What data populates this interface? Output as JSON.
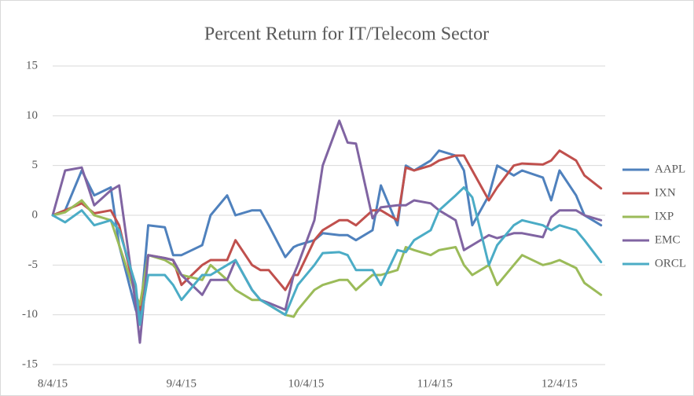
{
  "chart_data": {
    "type": "line",
    "title": "Percent Return for IT/Telecom Sector",
    "x": [
      "2015-08-04",
      "2015-08-07",
      "2015-08-11",
      "2015-08-14",
      "2015-08-18",
      "2015-08-20",
      "2015-08-24",
      "2015-08-25",
      "2015-08-27",
      "2015-08-31",
      "2015-09-02",
      "2015-09-04",
      "2015-09-09",
      "2015-09-11",
      "2015-09-15",
      "2015-09-17",
      "2015-09-21",
      "2015-09-23",
      "2015-09-25",
      "2015-09-29",
      "2015-10-01",
      "2015-10-02",
      "2015-10-06",
      "2015-10-08",
      "2015-10-12",
      "2015-10-14",
      "2015-10-16",
      "2015-10-20",
      "2015-10-22",
      "2015-10-26",
      "2015-10-28",
      "2015-10-30",
      "2015-11-03",
      "2015-11-05",
      "2015-11-09",
      "2015-11-11",
      "2015-11-13",
      "2015-11-17",
      "2015-11-19",
      "2015-11-23",
      "2015-11-25",
      "2015-11-30",
      "2015-12-02",
      "2015-12-04",
      "2015-12-08",
      "2015-12-10",
      "2015-12-14"
    ],
    "series": [
      {
        "name": "AAPL",
        "color": "#4f81bd",
        "values": [
          0,
          0.5,
          4.5,
          2,
          2.8,
          -3,
          -9.5,
          -10.5,
          -1,
          -1.2,
          -4,
          -4,
          -3,
          0,
          2,
          0,
          0.5,
          0.5,
          -1,
          -4.2,
          -3.2,
          -3,
          -2.5,
          -1.8,
          -2,
          -2,
          -2.5,
          -1.5,
          3,
          -1,
          5,
          4.5,
          5.5,
          6.5,
          6,
          4.5,
          -1,
          2,
          5,
          4,
          4.5,
          3.8,
          1.5,
          4.5,
          2,
          0,
          -1
        ]
      },
      {
        "name": "IXN",
        "color": "#c0504d",
        "values": [
          0,
          0.5,
          1.2,
          0.2,
          0.5,
          -1,
          -8,
          -9.5,
          -4,
          -4.3,
          -4.5,
          -7,
          -5,
          -4.5,
          -4.5,
          -2.5,
          -5,
          -5.5,
          -5.5,
          -7.5,
          -6,
          -6,
          -2.5,
          -1.5,
          -0.5,
          -0.5,
          -1,
          0.5,
          0.5,
          -0.5,
          4.8,
          4.5,
          5,
          5.5,
          6,
          6,
          4.5,
          1.5,
          2.8,
          5,
          5.2,
          5.1,
          5.5,
          6.5,
          5.5,
          4,
          2.7
        ]
      },
      {
        "name": "IXP",
        "color": "#9bbb59",
        "values": [
          0,
          0.3,
          1.5,
          0,
          -0.5,
          -3,
          -8,
          -9,
          -4,
          -4.5,
          -5,
          -6,
          -6.5,
          -5,
          -6.5,
          -7.5,
          -8.5,
          -8.5,
          -9,
          -10,
          -10.2,
          -9.5,
          -7.5,
          -7,
          -6.5,
          -6.5,
          -7.5,
          -6,
          -6,
          -5.5,
          -3.2,
          -3.5,
          -4,
          -3.5,
          -3.2,
          -5,
          -6,
          -5,
          -7,
          -5,
          -4,
          -5,
          -4.8,
          -4.5,
          -5.3,
          -6.8,
          -8
        ]
      },
      {
        "name": "EMC",
        "color": "#8064a2",
        "values": [
          0,
          4.5,
          4.8,
          1,
          2.5,
          3,
          -9,
          -12.8,
          -4,
          -4.3,
          -4.5,
          -6,
          -8,
          -6.5,
          -6.5,
          -4.5,
          -7.5,
          -8.5,
          -8.8,
          -9.5,
          -6,
          -5,
          -0.5,
          5,
          9.5,
          7.3,
          7.2,
          -0.3,
          0.8,
          1,
          1,
          1.5,
          1.2,
          0.5,
          -0.5,
          -3.5,
          -3,
          -2,
          -2.3,
          -1.8,
          -1.8,
          -2.2,
          -0.2,
          0.5,
          0.5,
          0,
          -0.5
        ]
      },
      {
        "name": "ORCL",
        "color": "#4bacc6",
        "values": [
          0,
          -0.7,
          0.5,
          -1,
          -0.5,
          -1.5,
          -7,
          -11,
          -6,
          -6,
          -7,
          -8.5,
          -6,
          -6,
          -5,
          -4.5,
          -7.5,
          -8.5,
          -9,
          -10,
          -8,
          -7,
          -5,
          -3.8,
          -3.7,
          -4,
          -5.5,
          -5.5,
          -7,
          -3.5,
          -3.7,
          -2.5,
          -1.5,
          0.5,
          2,
          2.8,
          1.8,
          -5,
          -3,
          -1,
          -0.5,
          -1,
          -1.5,
          -1,
          -1.5,
          -2.5,
          -4.7
        ]
      }
    ],
    "xlim": [
      "2015-08-04",
      "2015-12-15"
    ],
    "xticks": [
      {
        "value": "2015-08-04",
        "label": "8/4/15"
      },
      {
        "value": "2015-09-04",
        "label": "9/4/15"
      },
      {
        "value": "2015-10-04",
        "label": "10/4/15"
      },
      {
        "value": "2015-11-04",
        "label": "11/4/15"
      },
      {
        "value": "2015-12-04",
        "label": "12/4/15"
      }
    ],
    "ylim": [
      -15,
      15
    ],
    "yticks": [
      -15,
      -10,
      -5,
      0,
      5,
      10,
      15
    ],
    "grid": true,
    "legend": "right"
  }
}
